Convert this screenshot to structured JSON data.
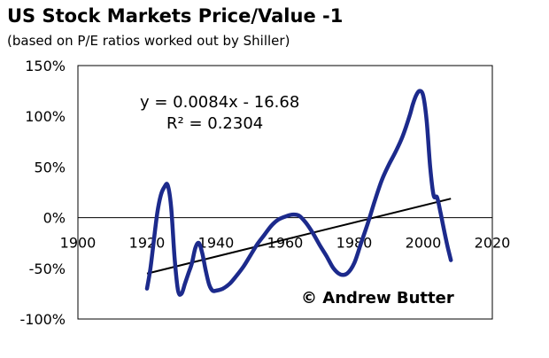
{
  "chart_data": {
    "type": "line",
    "title": "US Stock Markets Price/Value -1",
    "subtitle": "(based on P/E ratios worked out by Shiller)",
    "xlabel": "",
    "ylabel": "",
    "xlim": [
      1900,
      2020
    ],
    "ylim": [
      -100,
      150
    ],
    "x_ticks": [
      "1900",
      "1920",
      "1940",
      "1960",
      "1980",
      "2000",
      "2020"
    ],
    "y_ticks": [
      "150%",
      "100%",
      "50%",
      "0%",
      "-50%",
      "-100%"
    ],
    "grid": false,
    "series": [
      {
        "name": "",
        "color": "#1c2a8c",
        "x": [
          1920,
          1921,
          1922,
          1923,
          1924,
          1925,
          1926,
          1927,
          1928,
          1929,
          1930,
          1931,
          1932,
          1933,
          1934,
          1935,
          1936,
          1937,
          1938,
          1939,
          1940,
          1942,
          1944,
          1946,
          1948,
          1950,
          1952,
          1954,
          1956,
          1958,
          1960,
          1962,
          1964,
          1966,
          1968,
          1970,
          1972,
          1974,
          1976,
          1978,
          1980,
          1982,
          1984,
          1986,
          1988,
          1990,
          1992,
          1994,
          1996,
          1997,
          1998,
          1999,
          2000,
          2001,
          2002,
          2003,
          2004,
          2005,
          2006,
          2007,
          2008
        ],
        "values": [
          -70,
          -50,
          -22,
          5,
          22,
          30,
          32,
          10,
          -40,
          -72,
          -75,
          -65,
          -55,
          -45,
          -30,
          -25,
          -35,
          -52,
          -66,
          -72,
          -72,
          -70,
          -65,
          -57,
          -48,
          -37,
          -26,
          -17,
          -8,
          -2,
          1,
          3,
          2,
          -5,
          -15,
          -27,
          -38,
          -50,
          -56,
          -55,
          -45,
          -25,
          -5,
          17,
          37,
          52,
          65,
          80,
          100,
          112,
          121,
          125,
          120,
          95,
          50,
          22,
          20,
          5,
          -12,
          -28,
          -42
        ],
        "trend": {
          "slope": 0.0084,
          "intercept": -16.68,
          "x_start": 1920,
          "x_end": 2008
        }
      }
    ],
    "annotations": [
      {
        "text_eq": "y = 0.0084x - 16.68",
        "text_r2": "R² = 0.2304"
      },
      {
        "text": "© Andrew Butter"
      }
    ]
  }
}
